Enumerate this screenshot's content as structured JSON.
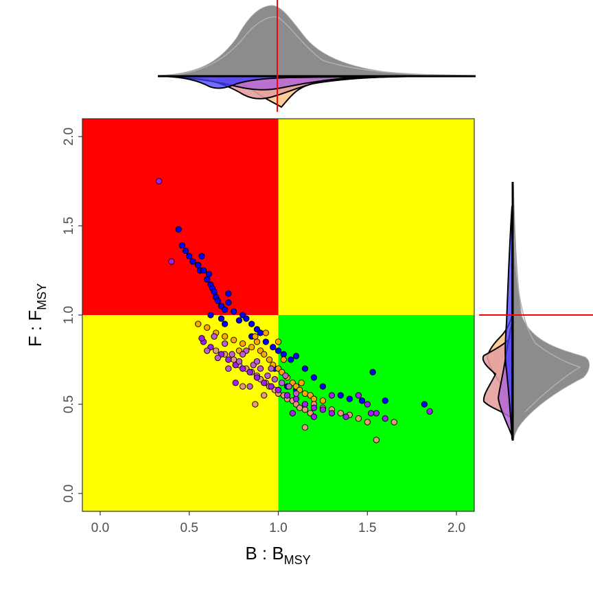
{
  "chart_data": {
    "type": "scatter",
    "title": "",
    "xlabel": {
      "main": "B : B",
      "sub": "MSY"
    },
    "ylabel": {
      "main": "F : F",
      "sub": "MSY"
    },
    "xlim": [
      -0.1,
      2.1
    ],
    "ylim": [
      -0.1,
      2.1
    ],
    "x_ticks": [
      0.0,
      0.5,
      1.0,
      1.5,
      2.0
    ],
    "x_tick_labels": [
      "0.0",
      "0.5",
      "1.0",
      "1.5",
      "2.0"
    ],
    "y_ticks": [
      0.0,
      0.5,
      1.0,
      1.5,
      2.0
    ],
    "y_tick_labels": [
      "0.0",
      "0.5",
      "1.0",
      "1.5",
      "2.0"
    ],
    "grid": false,
    "legend": "none",
    "reference_lines": {
      "x": 1.0,
      "y": 1.0,
      "color": "#ff0000"
    },
    "quadrants": [
      {
        "name": "overfished-overfishing",
        "x": [
          -0.1,
          1.0
        ],
        "y": [
          1.0,
          2.1
        ],
        "color": "#ff0000"
      },
      {
        "name": "healthy-overfishing",
        "x": [
          1.0,
          2.1
        ],
        "y": [
          1.0,
          2.1
        ],
        "color": "#ffff00"
      },
      {
        "name": "overfished-no-overfishing",
        "x": [
          -0.1,
          1.0
        ],
        "y": [
          -0.1,
          1.0
        ],
        "color": "#ffff00"
      },
      {
        "name": "healthy",
        "x": [
          1.0,
          2.1
        ],
        "y": [
          -0.1,
          1.0
        ],
        "color": "#00ff00"
      }
    ],
    "series": [
      {
        "color": "#0000ff",
        "points": [
          [
            0.44,
            1.48
          ],
          [
            0.46,
            1.39
          ],
          [
            0.48,
            1.36
          ],
          [
            0.5,
            1.33
          ],
          [
            0.52,
            1.3
          ],
          [
            0.55,
            1.28
          ],
          [
            0.56,
            1.25
          ],
          [
            0.57,
            1.33
          ],
          [
            0.58,
            1.25
          ],
          [
            0.6,
            1.2
          ],
          [
            0.61,
            1.23
          ],
          [
            0.62,
            1.17
          ],
          [
            0.63,
            1.15
          ],
          [
            0.64,
            1.13
          ],
          [
            0.65,
            1.1
          ],
          [
            0.66,
            1.08
          ],
          [
            0.68,
            1.05
          ],
          [
            0.7,
            1.03
          ],
          [
            0.72,
            1.07
          ],
          [
            0.75,
            1.02
          ],
          [
            0.8,
            1.0
          ],
          [
            0.82,
            0.98
          ],
          [
            0.85,
            0.95
          ],
          [
            0.88,
            0.92
          ],
          [
            0.9,
            0.9
          ],
          [
            0.93,
            0.85
          ],
          [
            0.97,
            0.82
          ],
          [
            1.0,
            0.8
          ],
          [
            1.03,
            0.78
          ],
          [
            1.07,
            0.75
          ],
          [
            1.1,
            0.77
          ],
          [
            1.15,
            0.7
          ],
          [
            1.2,
            0.65
          ],
          [
            1.25,
            0.6
          ],
          [
            1.35,
            0.55
          ],
          [
            1.4,
            0.53
          ],
          [
            1.47,
            0.52
          ],
          [
            1.53,
            0.68
          ],
          [
            1.6,
            0.52
          ],
          [
            1.82,
            0.5
          ],
          [
            0.7,
            0.95
          ],
          [
            0.68,
            0.98
          ],
          [
            0.72,
            1.12
          ],
          [
            0.78,
            0.97
          ],
          [
            0.85,
            0.88
          ],
          [
            0.98,
            0.7
          ],
          [
            1.05,
            0.6
          ],
          [
            1.1,
            0.58
          ],
          [
            0.62,
            1.0
          ]
        ]
      },
      {
        "color": "#ffa500",
        "points": [
          [
            0.55,
            0.95
          ],
          [
            0.6,
            0.93
          ],
          [
            0.65,
            0.9
          ],
          [
            0.7,
            0.88
          ],
          [
            0.75,
            0.86
          ],
          [
            0.8,
            0.84
          ],
          [
            0.85,
            0.82
          ],
          [
            0.88,
            0.85
          ],
          [
            0.9,
            0.8
          ],
          [
            0.92,
            0.78
          ],
          [
            0.95,
            0.75
          ],
          [
            0.97,
            0.72
          ],
          [
            1.0,
            0.7
          ],
          [
            1.02,
            0.68
          ],
          [
            1.05,
            0.65
          ],
          [
            1.08,
            0.62
          ],
          [
            1.1,
            0.6
          ],
          [
            1.12,
            0.58
          ],
          [
            1.15,
            0.56
          ],
          [
            1.18,
            0.55
          ],
          [
            1.2,
            0.53
          ],
          [
            1.25,
            0.52
          ],
          [
            0.93,
            0.9
          ],
          [
            0.87,
            0.88
          ],
          [
            0.78,
            0.8
          ],
          [
            1.0,
            0.85
          ],
          [
            1.03,
            0.75
          ],
          [
            1.13,
            0.62
          ]
        ]
      },
      {
        "color": "#e9967a",
        "points": [
          [
            0.65,
            0.8
          ],
          [
            0.7,
            0.78
          ],
          [
            0.75,
            0.75
          ],
          [
            0.78,
            0.72
          ],
          [
            0.82,
            0.7
          ],
          [
            0.85,
            0.68
          ],
          [
            0.88,
            0.66
          ],
          [
            0.9,
            0.64
          ],
          [
            0.93,
            0.62
          ],
          [
            0.95,
            0.6
          ],
          [
            0.98,
            0.58
          ],
          [
            1.0,
            0.56
          ],
          [
            1.03,
            0.55
          ],
          [
            1.05,
            0.53
          ],
          [
            1.08,
            0.52
          ],
          [
            1.1,
            0.5
          ],
          [
            1.12,
            0.48
          ],
          [
            1.15,
            0.47
          ],
          [
            1.18,
            0.45
          ],
          [
            1.2,
            0.5
          ],
          [
            1.25,
            0.48
          ],
          [
            1.3,
            0.47
          ],
          [
            1.35,
            0.45
          ],
          [
            1.4,
            0.44
          ],
          [
            1.45,
            0.42
          ],
          [
            1.5,
            0.4
          ],
          [
            1.55,
            0.3
          ],
          [
            1.65,
            0.4
          ],
          [
            0.87,
            0.5
          ],
          [
            1.15,
            0.37
          ],
          [
            0.8,
            0.6
          ],
          [
            0.92,
            0.55
          ]
        ]
      },
      {
        "color": "#a020f0",
        "points": [
          [
            0.33,
            1.75
          ],
          [
            0.4,
            1.3
          ],
          [
            0.58,
            0.85
          ],
          [
            0.62,
            0.82
          ],
          [
            0.68,
            0.78
          ],
          [
            0.72,
            0.75
          ],
          [
            0.76,
            0.72
          ],
          [
            0.8,
            0.7
          ],
          [
            0.84,
            0.68
          ],
          [
            0.88,
            0.65
          ],
          [
            0.92,
            0.62
          ],
          [
            0.96,
            0.6
          ],
          [
            1.0,
            0.58
          ],
          [
            1.05,
            0.55
          ],
          [
            1.1,
            0.53
          ],
          [
            1.15,
            0.5
          ],
          [
            1.2,
            0.48
          ],
          [
            1.25,
            0.47
          ],
          [
            1.3,
            0.45
          ],
          [
            1.38,
            0.43
          ],
          [
            1.45,
            0.55
          ],
          [
            1.5,
            0.5
          ],
          [
            1.55,
            0.45
          ],
          [
            1.6,
            0.42
          ],
          [
            1.85,
            0.46
          ],
          [
            1.52,
            0.45
          ],
          [
            1.3,
            0.55
          ],
          [
            0.76,
            0.62
          ],
          [
            0.57,
            0.87
          ],
          [
            1.2,
            0.43
          ],
          [
            1.08,
            0.45
          ]
        ]
      },
      {
        "color": "#c05ec8",
        "points": [
          [
            0.6,
            0.8
          ],
          [
            0.66,
            0.76
          ],
          [
            0.7,
            0.84
          ],
          [
            0.74,
            0.78
          ],
          [
            0.78,
            0.74
          ],
          [
            0.82,
            0.8
          ],
          [
            0.86,
            0.72
          ],
          [
            0.9,
            0.7
          ],
          [
            0.94,
            0.66
          ],
          [
            0.98,
            0.64
          ],
          [
            1.02,
            0.62
          ],
          [
            1.06,
            0.6
          ],
          [
            1.1,
            0.56
          ],
          [
            0.64,
            0.88
          ],
          [
            0.72,
            0.7
          ],
          [
            0.84,
            0.6
          ],
          [
            0.96,
            0.7
          ],
          [
            1.04,
            0.66
          ],
          [
            0.8,
            0.78
          ],
          [
            0.88,
            0.74
          ]
        ]
      }
    ]
  }
}
